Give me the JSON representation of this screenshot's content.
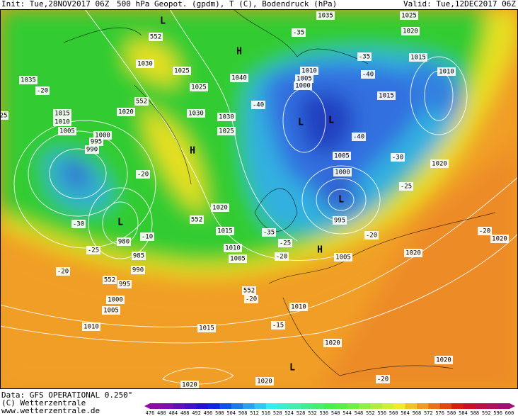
{
  "header": {
    "init": "Init: Tue,28NOV2017 06Z",
    "description": "500 hPa Geopot. (gpdm), T (C), Bodendruck (hPa)",
    "valid": "Valid: Tue,12DEC2017 06Z"
  },
  "footer": {
    "source": "Data: GFS OPERATIONAL 0.250°",
    "copyright": "(C) Wetterzentrale",
    "website": "www.wetterzentrale.de"
  },
  "colorbar": {
    "labels": [
      476,
      480,
      484,
      488,
      492,
      496,
      500,
      504,
      508,
      512,
      516,
      520,
      524,
      528,
      532,
      536,
      540,
      544,
      548,
      552,
      556,
      560,
      564,
      568,
      572,
      576,
      580,
      584,
      588,
      592,
      596,
      600
    ]
  },
  "map": {
    "labels": [
      "L",
      "552",
      "1030",
      "1025",
      "H",
      "1040",
      "1035",
      "-20",
      "1020",
      "1015",
      "1010",
      "1005",
      "1000",
      "995",
      "990",
      "H",
      "L",
      "L",
      "1010",
      "1005",
      "1000",
      "1035",
      "1025",
      "1020",
      "1015",
      "1010",
      "1015",
      "-35",
      "-35",
      "-40",
      "-40",
      "-40",
      "1025",
      "1030",
      "1030",
      "1025",
      "552",
      "-20",
      "1005",
      "1000",
      "L",
      "995",
      "-30",
      "1020",
      "-25",
      "-20",
      "1020",
      "1015",
      "552",
      "L",
      "-30",
      "-10",
      "980",
      "985",
      "-25",
      "990",
      "-20",
      "552",
      "995",
      "1000",
      "1005",
      "1010",
      "1015",
      "1010",
      "1005",
      "-35",
      "-25",
      "-20",
      "H",
      "1005",
      "1020",
      "-20",
      "1020",
      "552",
      "-20",
      "1010",
      "-15",
      "1020",
      "L",
      "1020",
      "-20",
      "1020",
      "1020",
      "25"
    ]
  }
}
